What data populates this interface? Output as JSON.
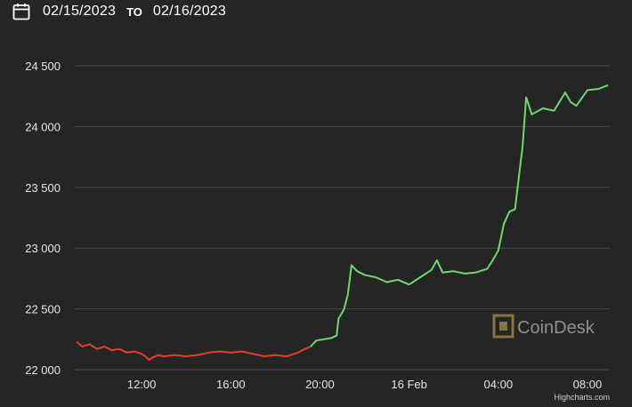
{
  "date_range": {
    "start": "02/15/2023",
    "to_label": "TO",
    "end": "02/16/2023",
    "icon": "calendar-icon"
  },
  "watermark": "CoinDesk",
  "credit": "Highcharts.com",
  "colors": {
    "background": "#252525",
    "down": "#e0402a",
    "up": "#6ed86e",
    "grid": "#4a4a4a",
    "text": "#ffffff"
  },
  "chart_data": {
    "type": "line",
    "title": "",
    "xlabel": "",
    "ylabel": "",
    "ylim": [
      22000,
      24500
    ],
    "y_ticks": [
      22000,
      22500,
      23000,
      23500,
      24000,
      24500
    ],
    "y_tick_labels": [
      "22 000",
      "22 500",
      "23 000",
      "23 500",
      "24 000",
      "24 500"
    ],
    "x_ticks": [
      {
        "t": "2023-02-15T12:00",
        "label": "12:00"
      },
      {
        "t": "2023-02-15T16:00",
        "label": "16:00"
      },
      {
        "t": "2023-02-15T20:00",
        "label": "20:00"
      },
      {
        "t": "2023-02-16T00:00",
        "label": "16 Feb"
      },
      {
        "t": "2023-02-16T04:00",
        "label": "04:00"
      },
      {
        "t": "2023-02-16T08:00",
        "label": "08:00"
      }
    ],
    "xlim": [
      "2023-02-15T09:00",
      "2023-02-16T09:00"
    ],
    "grid": true,
    "legend": "none",
    "series": [
      {
        "color": "#e0402a",
        "points": [
          [
            "2023-02-15T09:05",
            22230
          ],
          [
            "2023-02-15T09:20",
            22190
          ],
          [
            "2023-02-15T09:40",
            22210
          ],
          [
            "2023-02-15T10:00",
            22170
          ],
          [
            "2023-02-15T10:20",
            22190
          ],
          [
            "2023-02-15T10:40",
            22160
          ],
          [
            "2023-02-15T11:00",
            22170
          ],
          [
            "2023-02-15T11:20",
            22140
          ],
          [
            "2023-02-15T11:40",
            22150
          ],
          [
            "2023-02-15T12:00",
            22130
          ],
          [
            "2023-02-15T12:10",
            22110
          ],
          [
            "2023-02-15T12:20",
            22080
          ],
          [
            "2023-02-15T12:30",
            22100
          ],
          [
            "2023-02-15T12:45",
            22120
          ],
          [
            "2023-02-15T13:00",
            22110
          ],
          [
            "2023-02-15T13:30",
            22120
          ],
          [
            "2023-02-15T14:00",
            22110
          ],
          [
            "2023-02-15T14:30",
            22120
          ],
          [
            "2023-02-15T15:00",
            22140
          ],
          [
            "2023-02-15T15:30",
            22150
          ],
          [
            "2023-02-15T16:00",
            22140
          ],
          [
            "2023-02-15T16:30",
            22150
          ],
          [
            "2023-02-15T17:00",
            22130
          ],
          [
            "2023-02-15T17:30",
            22110
          ],
          [
            "2023-02-15T18:00",
            22120
          ],
          [
            "2023-02-15T18:30",
            22110
          ],
          [
            "2023-02-15T19:00",
            22140
          ],
          [
            "2023-02-15T19:20",
            22170
          ],
          [
            "2023-02-15T19:35",
            22190
          ]
        ]
      },
      {
        "color": "#6ed86e",
        "points": [
          [
            "2023-02-15T19:35",
            22190
          ],
          [
            "2023-02-15T19:50",
            22240
          ],
          [
            "2023-02-15T20:10",
            22250
          ],
          [
            "2023-02-15T20:30",
            22260
          ],
          [
            "2023-02-15T20:45",
            22280
          ],
          [
            "2023-02-15T20:50",
            22420
          ],
          [
            "2023-02-15T21:00",
            22470
          ],
          [
            "2023-02-15T21:05",
            22500
          ],
          [
            "2023-02-15T21:15",
            22620
          ],
          [
            "2023-02-15T21:25",
            22860
          ],
          [
            "2023-02-15T21:40",
            22810
          ],
          [
            "2023-02-15T22:00",
            22780
          ],
          [
            "2023-02-15T22:30",
            22760
          ],
          [
            "2023-02-15T23:00",
            22720
          ],
          [
            "2023-02-15T23:30",
            22740
          ],
          [
            "2023-02-16T00:00",
            22700
          ],
          [
            "2023-02-16T00:30",
            22760
          ],
          [
            "2023-02-16T01:00",
            22820
          ],
          [
            "2023-02-16T01:15",
            22900
          ],
          [
            "2023-02-16T01:30",
            22800
          ],
          [
            "2023-02-16T02:00",
            22810
          ],
          [
            "2023-02-16T02:30",
            22790
          ],
          [
            "2023-02-16T03:00",
            22800
          ],
          [
            "2023-02-16T03:30",
            22830
          ],
          [
            "2023-02-16T03:45",
            22900
          ],
          [
            "2023-02-16T04:00",
            22980
          ],
          [
            "2023-02-16T04:15",
            23200
          ],
          [
            "2023-02-16T04:30",
            23300
          ],
          [
            "2023-02-16T04:45",
            23320
          ],
          [
            "2023-02-16T05:00",
            23700
          ],
          [
            "2023-02-16T05:05",
            23820
          ],
          [
            "2023-02-16T05:15",
            24240
          ],
          [
            "2023-02-16T05:30",
            24100
          ],
          [
            "2023-02-16T06:00",
            24150
          ],
          [
            "2023-02-16T06:30",
            24130
          ],
          [
            "2023-02-16T07:00",
            24280
          ],
          [
            "2023-02-16T07:15",
            24200
          ],
          [
            "2023-02-16T07:30",
            24170
          ],
          [
            "2023-02-16T08:00",
            24300
          ],
          [
            "2023-02-16T08:30",
            24310
          ],
          [
            "2023-02-16T08:55",
            24340
          ]
        ]
      }
    ]
  }
}
